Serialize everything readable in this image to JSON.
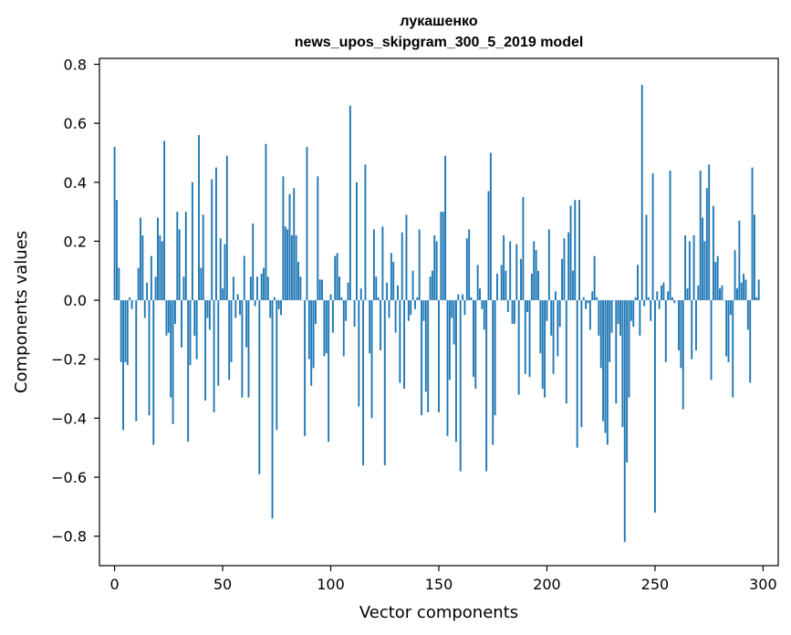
{
  "chart_data": {
    "type": "bar",
    "title": "лукашенко",
    "subtitle": "news_upos_skipgram_300_5_2019 model",
    "xlabel": "Vector components",
    "ylabel": "Components values",
    "xlim": [
      -7,
      307
    ],
    "ylim": [
      -0.9,
      0.82
    ],
    "xticks": [
      0,
      50,
      100,
      150,
      200,
      250,
      300
    ],
    "xtick_labels": [
      "0",
      "50",
      "100",
      "150",
      "200",
      "250",
      "300"
    ],
    "yticks": [
      -0.8,
      -0.6,
      -0.4,
      -0.2,
      0.0,
      0.2,
      0.4,
      0.6,
      0.8
    ],
    "ytick_labels": [
      "−0.8",
      "−0.6",
      "−0.4",
      "−0.2",
      "0.0",
      "0.2",
      "0.4",
      "0.6",
      "0.8"
    ],
    "bar_color": "#1f77b4",
    "grid": false,
    "series": [
      {
        "values": [
          0.52,
          0.34,
          0.11,
          -0.21,
          -0.44,
          -0.21,
          -0.22,
          0.01,
          -0.03,
          0.0,
          -0.41,
          0.11,
          0.28,
          0.22,
          -0.06,
          0.06,
          -0.39,
          0.15,
          -0.49,
          0.08,
          0.28,
          0.22,
          0.2,
          0.54,
          -0.12,
          -0.11,
          -0.33,
          -0.42,
          -0.08,
          0.3,
          0.24,
          -0.16,
          0.08,
          0.3,
          -0.48,
          -0.22,
          0.4,
          -0.12,
          -0.2,
          0.56,
          0.11,
          0.29,
          -0.34,
          -0.06,
          -0.1,
          0.41,
          -0.38,
          0.45,
          -0.29,
          0.21,
          0.04,
          0.19,
          0.49,
          -0.27,
          -0.21,
          0.08,
          -0.06,
          0.02,
          -0.05,
          -0.33,
          0.15,
          -0.16,
          -0.33,
          0.08,
          0.26,
          -0.02,
          0.08,
          -0.59,
          0.09,
          0.11,
          0.53,
          0.08,
          -0.06,
          -0.74,
          0.01,
          -0.44,
          -0.03,
          -0.05,
          0.42,
          0.25,
          0.24,
          0.36,
          0.22,
          0.38,
          0.22,
          0.13,
          0.08,
          0.0,
          -0.46,
          0.52,
          -0.2,
          -0.29,
          -0.23,
          -0.08,
          0.42,
          0.07,
          0.07,
          -0.19,
          -0.18,
          -0.48,
          0.02,
          -0.11,
          0.15,
          0.16,
          0.08,
          0.01,
          -0.19,
          -0.07,
          0.06,
          0.66,
          0.0,
          -0.09,
          0.4,
          -0.36,
          0.04,
          -0.56,
          0.46,
          0.0,
          -0.18,
          -0.4,
          0.24,
          0.08,
          0.01,
          -0.17,
          0.25,
          -0.56,
          0.06,
          -0.06,
          0.16,
          0.13,
          -0.11,
          0.05,
          -0.28,
          0.23,
          -0.3,
          0.29,
          -0.07,
          -0.05,
          0.1,
          -0.03,
          0.01,
          0.24,
          -0.39,
          -0.07,
          -0.31,
          -0.38,
          0.08,
          0.1,
          0.22,
          0.2,
          -0.38,
          0.3,
          0.3,
          0.49,
          -0.46,
          -0.27,
          -0.06,
          -0.15,
          -0.48,
          0.02,
          -0.58,
          0.02,
          -0.05,
          0.21,
          0.24,
          0.01,
          -0.26,
          -0.3,
          0.12,
          0.04,
          -0.03,
          -0.1,
          -0.58,
          0.37,
          0.5,
          -0.49,
          -0.39,
          0.09,
          0.0,
          0.12,
          0.22,
          0.1,
          -0.04,
          0.2,
          -0.08,
          -0.08,
          0.19,
          -0.32,
          0.14,
          0.35,
          -0.25,
          -0.04,
          -0.26,
          0.09,
          0.2,
          0.17,
          0.1,
          -0.18,
          -0.3,
          -0.33,
          -0.07,
          0.24,
          -0.12,
          -0.25,
          0.03,
          -0.19,
          -0.09,
          0.14,
          0.21,
          -0.35,
          0.23,
          0.32,
          0.1,
          0.34,
          -0.5,
          0.34,
          -0.43,
          0.01,
          -0.03,
          -0.01,
          -0.1,
          0.03,
          0.15,
          0.01,
          -0.12,
          -0.23,
          -0.41,
          -0.45,
          -0.49,
          -0.21,
          -0.11,
          0.0,
          -0.35,
          -0.08,
          -0.12,
          -0.43,
          -0.82,
          -0.55,
          -0.33,
          -0.07,
          -0.09,
          0.01,
          0.12,
          -0.12,
          0.73,
          -0.02,
          0.29,
          0.01,
          -0.07,
          0.43,
          -0.72,
          0.03,
          -0.03,
          0.05,
          0.06,
          -0.21,
          0.03,
          0.44,
          0.01,
          -0.01,
          0.0,
          -0.17,
          -0.23,
          -0.37,
          0.22,
          0.04,
          0.2,
          -0.2,
          0.22,
          -0.17,
          0.05,
          0.44,
          0.28,
          0.2,
          0.38,
          0.46,
          -0.27,
          0.32,
          0.13,
          0.15,
          0.04,
          0.05,
          0.0,
          -0.19,
          -0.21,
          -0.05,
          -0.33,
          0.17,
          0.04,
          0.27,
          0.06,
          0.09,
          0.07,
          -0.1,
          -0.28,
          0.45,
          0.29,
          0.01,
          0.07
        ]
      }
    ]
  }
}
